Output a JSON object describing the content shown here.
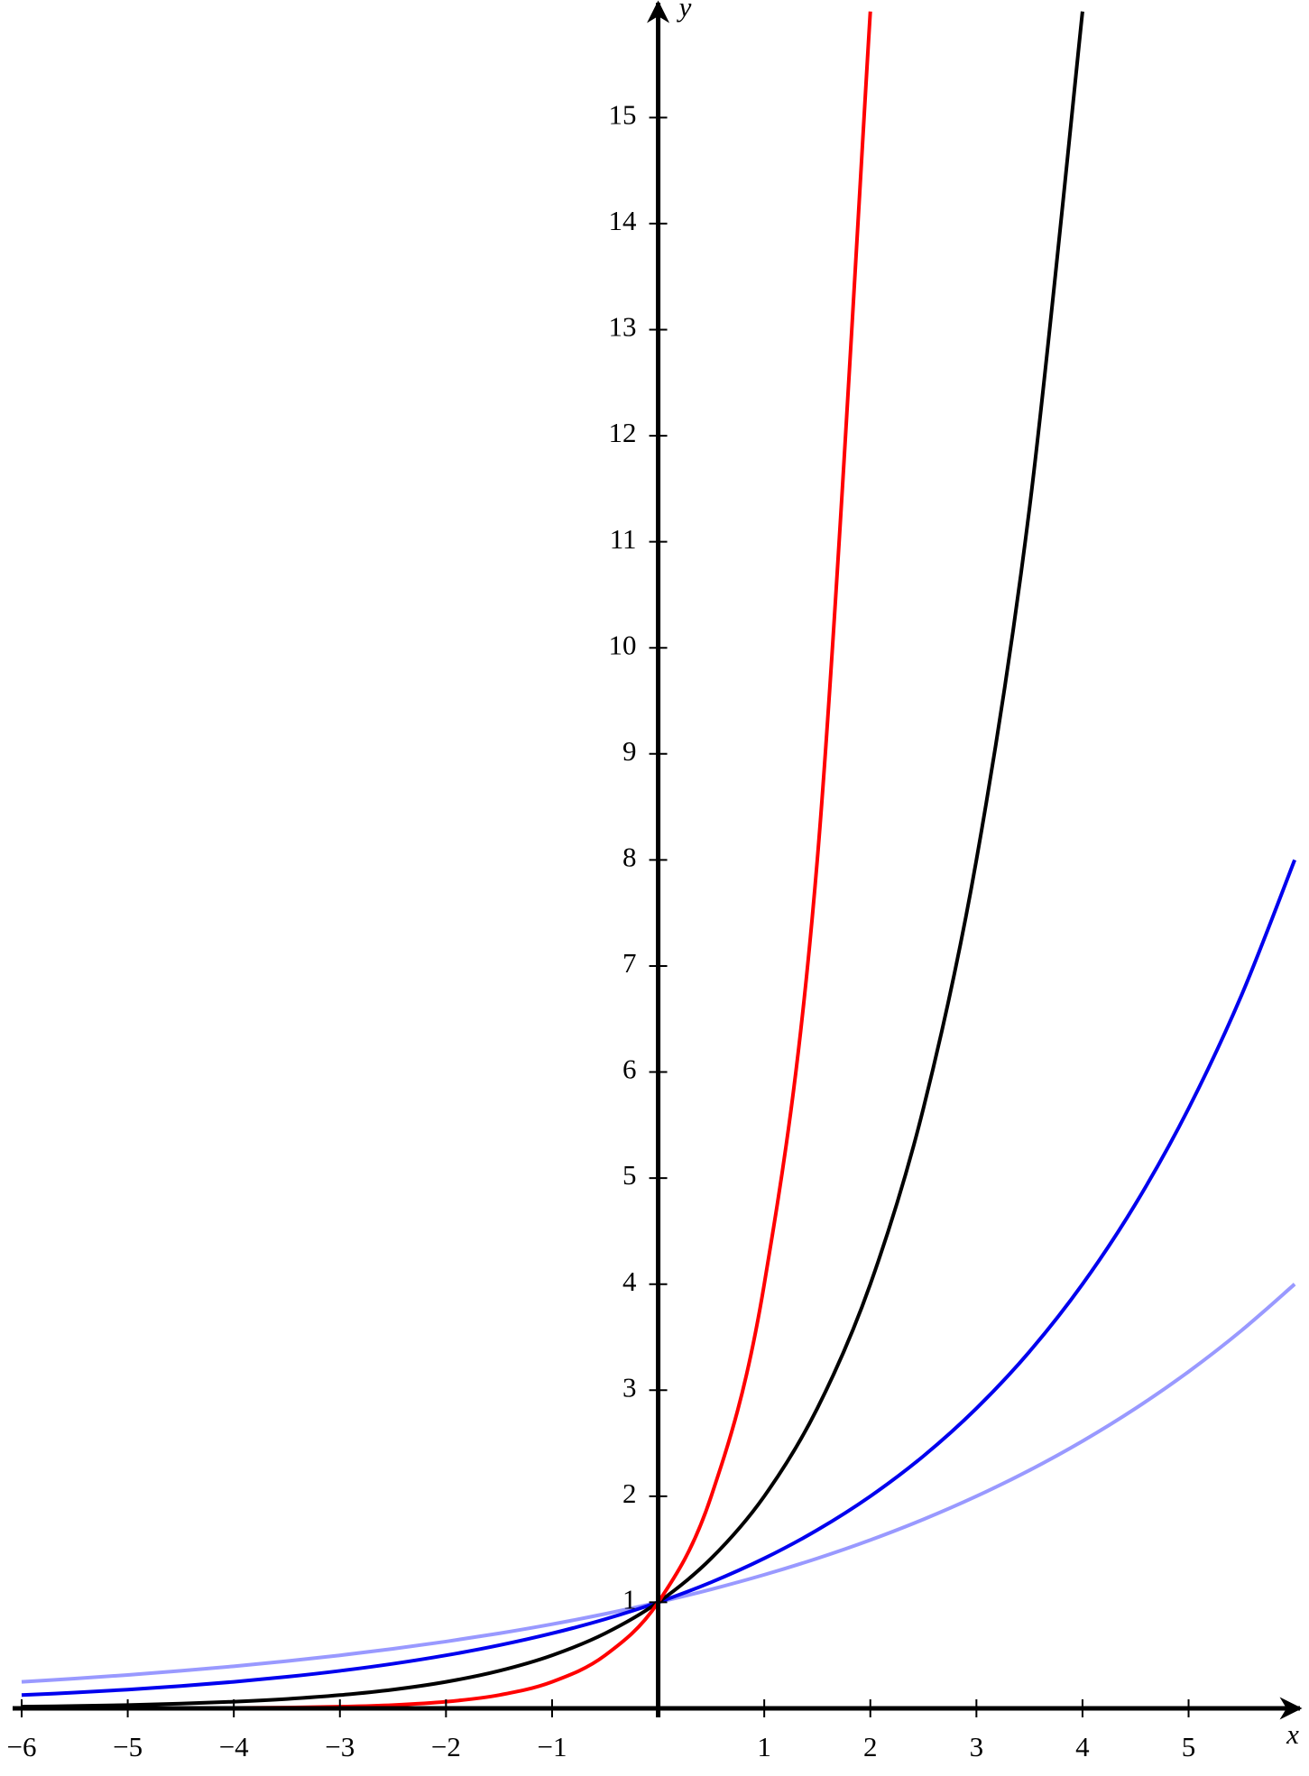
{
  "chart_data": {
    "type": "line",
    "x_label": "x",
    "y_label": "y",
    "x": [
      -6,
      -5.5,
      -5,
      -4.5,
      -4,
      -3.5,
      -3,
      -2.5,
      -2,
      -1.5,
      -1,
      -0.5,
      0,
      0.5,
      1,
      1.5,
      2,
      2.5,
      3,
      3.5,
      4,
      4.5,
      5,
      5.5,
      6
    ],
    "series": [
      {
        "color": "#9999ff",
        "values": [
          0.25,
          0.2806,
          0.315,
          0.3536,
          0.3969,
          0.4454,
          0.5,
          0.5612,
          0.63,
          0.7071,
          0.7937,
          0.8909,
          1,
          1.1225,
          1.2599,
          1.4142,
          1.5874,
          1.7818,
          2,
          2.2449,
          2.5198,
          2.8284,
          3.1748,
          3.5636,
          4
        ]
      },
      {
        "color": "#0000ee",
        "values": [
          0.125,
          0.1487,
          0.1768,
          0.2102,
          0.25,
          0.2973,
          0.3536,
          0.4204,
          0.5,
          0.5946,
          0.7071,
          0.8409,
          1,
          1.1892,
          1.4142,
          1.6818,
          2,
          2.3784,
          2.8284,
          3.3636,
          4,
          4.7568,
          5.6569,
          6.7272,
          8
        ]
      },
      {
        "color": "#000000",
        "values": [
          0.0156,
          0.0221,
          0.03125,
          0.0442,
          0.0625,
          0.0884,
          0.125,
          0.1768,
          0.25,
          0.3536,
          0.5,
          0.7071,
          1,
          1.4142,
          2,
          2.8284,
          4,
          5.6569,
          8,
          11.3137,
          16,
          null,
          null,
          null,
          null
        ]
      },
      {
        "color": "#ff0000",
        "values": [
          0.000244,
          0.000488,
          0.000977,
          0.00195,
          0.0039,
          0.0078,
          0.0156,
          0.03125,
          0.0625,
          0.125,
          0.25,
          0.5,
          1,
          2,
          4,
          8,
          16,
          null,
          null,
          null,
          null,
          null,
          null,
          null,
          null
        ]
      }
    ],
    "xlim": [
      -6,
      6.05
    ],
    "ylim": [
      0,
      16.1
    ],
    "xticks": [
      {
        "value": -6,
        "label": "−6"
      },
      {
        "value": -5,
        "label": "−5"
      },
      {
        "value": -4,
        "label": "−4"
      },
      {
        "value": -3,
        "label": "−3"
      },
      {
        "value": -2,
        "label": "−2"
      },
      {
        "value": -1,
        "label": "−1"
      },
      1,
      2,
      3,
      4,
      5
    ],
    "yticks": [
      1,
      2,
      3,
      4,
      5,
      6,
      7,
      8,
      9,
      10,
      11,
      12,
      13,
      14,
      15
    ]
  }
}
